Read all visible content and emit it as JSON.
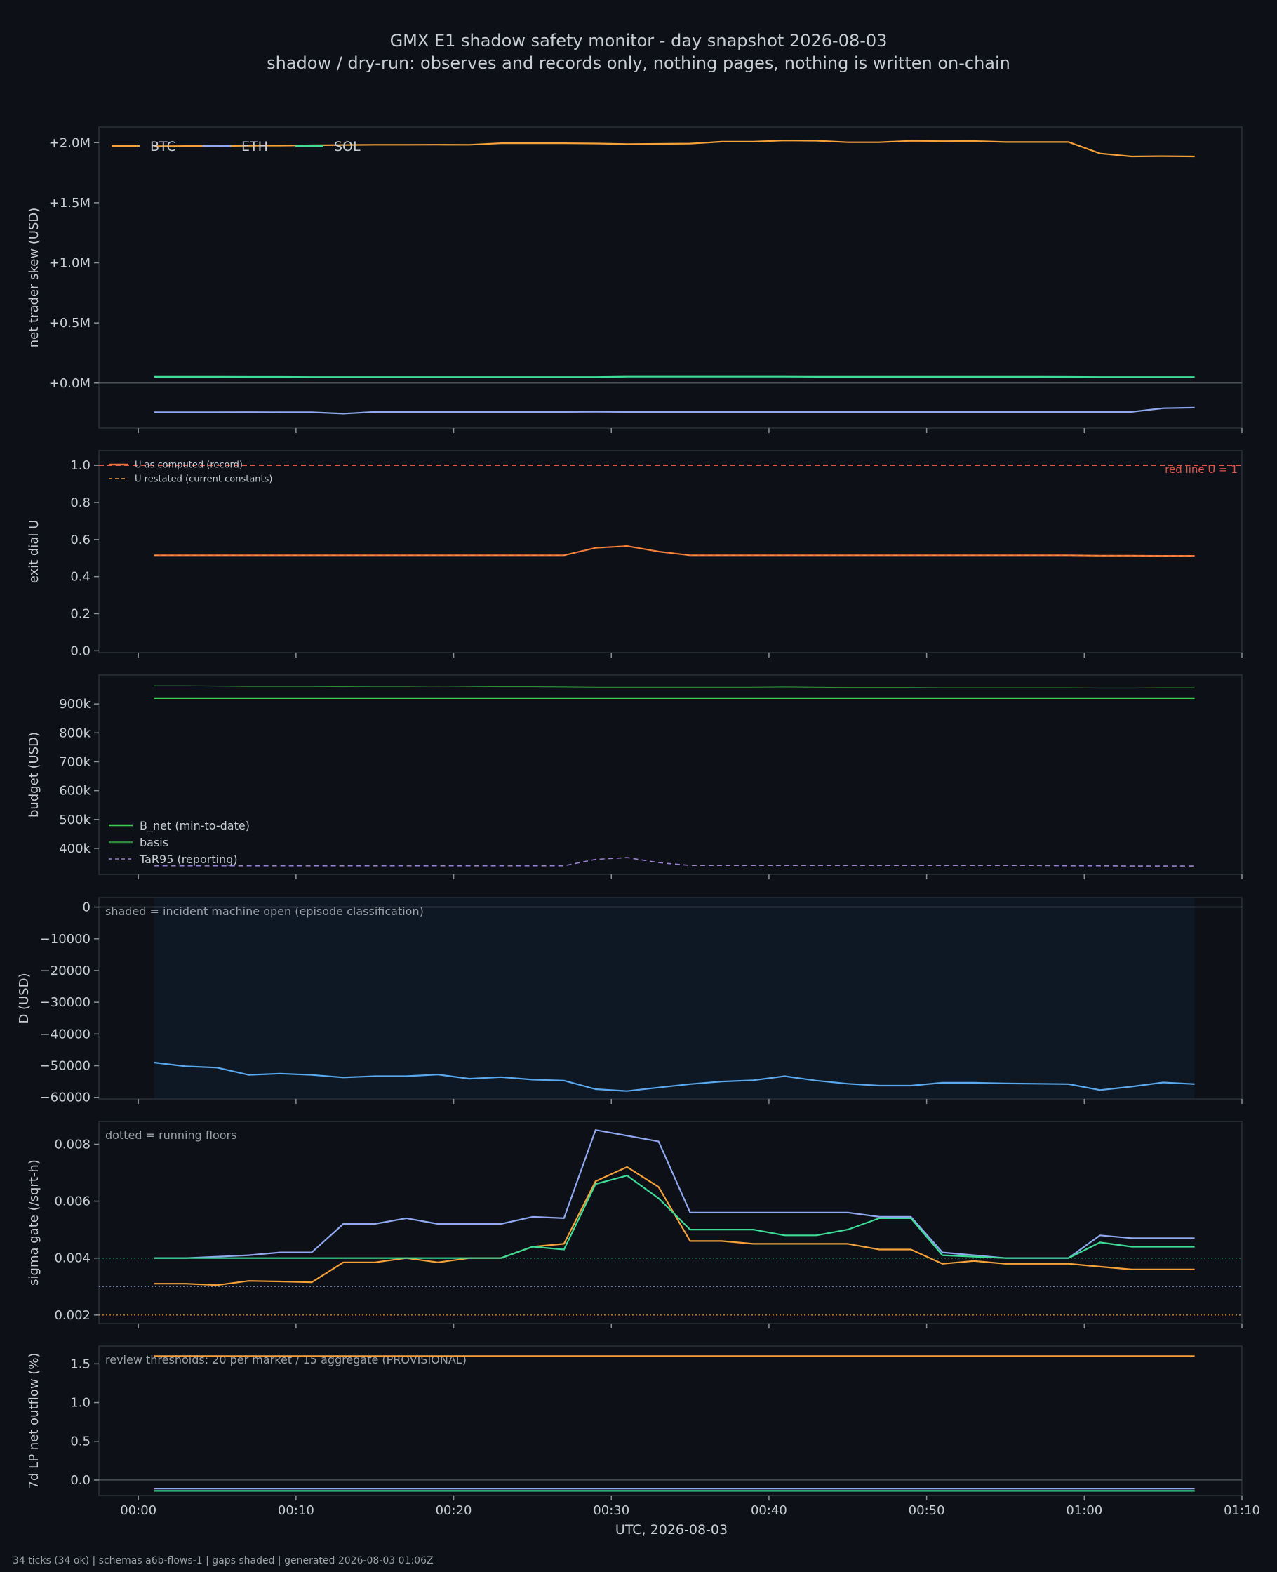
{
  "figure": {
    "title": "GMX E1 shadow safety monitor - day snapshot 2026-08-03",
    "subtitle": "shadow / dry-run: observes and records only, nothing pages, nothing is written on-chain",
    "x_label": "UTC, 2026-08-03",
    "x_ticks": [
      "00:00",
      "00:10",
      "00:20",
      "00:30",
      "00:40",
      "00:50",
      "01:00",
      "01:10"
    ],
    "footer": "34 ticks (34 ok) | schemas a6b-flows-1 | gaps shaded | generated 2026-08-03 01:06Z",
    "colors": {
      "background": "#0d1017",
      "btc": "#f5a13a",
      "eth": "#8fa8f0",
      "sol": "#3ddc97",
      "u_record": "#f0703a",
      "red_line": "#e0554a",
      "b_net": "#3fcc55",
      "basis": "#2e8a3a",
      "tar95": "#9b7fd0",
      "d_line": "#5aa8ee",
      "shade": "#0e1824"
    }
  },
  "chart_data": [
    {
      "type": "line",
      "ylabel": "net trader skew (USD)",
      "y_ticks": [
        "+2.0M",
        "+1.5M",
        "+1.0M",
        "+0.5M",
        "+0.0M"
      ],
      "y_tick_values": [
        2000000,
        1500000,
        1000000,
        500000,
        0
      ],
      "ylim": [
        -375000,
        2130000
      ],
      "zero_line": 0,
      "legend": "top-left",
      "x": [
        1,
        3,
        5,
        7,
        9,
        11,
        13,
        15,
        17,
        19,
        21,
        23,
        25,
        27,
        29,
        31,
        33,
        35,
        37,
        39,
        41,
        43,
        45,
        47,
        49,
        51,
        53,
        55,
        57,
        59,
        61,
        63,
        65,
        67
      ],
      "series": [
        {
          "name": "BTC",
          "values": [
            1970000,
            1972000,
            1972000,
            1974000,
            1975000,
            1978000,
            1980000,
            1982000,
            1982000,
            1983000,
            1982000,
            1995000,
            1995000,
            1995000,
            1993000,
            1988000,
            1990000,
            1992000,
            2008000,
            2008000,
            2018000,
            2016000,
            2003000,
            2003000,
            2015000,
            2012000,
            2013000,
            2005000,
            2005000,
            2005000,
            1910000,
            1885000,
            1887000,
            1885000
          ]
        },
        {
          "name": "ETH",
          "values": [
            -243000,
            -243000,
            -243000,
            -242000,
            -243000,
            -243000,
            -255000,
            -240000,
            -240000,
            -240000,
            -240000,
            -240000,
            -240000,
            -240000,
            -239000,
            -240000,
            -240000,
            -240000,
            -240000,
            -240000,
            -240000,
            -240000,
            -240000,
            -240000,
            -240000,
            -240000,
            -240000,
            -240000,
            -240000,
            -240000,
            -240000,
            -240000,
            -210000,
            -205000
          ]
        },
        {
          "name": "SOL",
          "values": [
            52000,
            52000,
            52000,
            51000,
            51000,
            50000,
            50000,
            50000,
            50000,
            50000,
            50000,
            50000,
            50000,
            50000,
            50000,
            53000,
            53000,
            53000,
            53000,
            53000,
            53000,
            52000,
            52000,
            52000,
            52000,
            52000,
            52000,
            52000,
            52000,
            51000,
            50000,
            50000,
            50000,
            50000
          ]
        }
      ]
    },
    {
      "type": "line",
      "ylabel": "exit dial U",
      "y_ticks": [
        "1.0",
        "0.8",
        "0.6",
        "0.4",
        "0.2",
        "0.0"
      ],
      "y_tick_values": [
        1.0,
        0.8,
        0.6,
        0.4,
        0.2,
        0.0
      ],
      "ylim": [
        -0.01,
        1.08
      ],
      "legend": "top-left",
      "annotation": "red line U = 1",
      "reference_value": 1.0,
      "x": [
        1,
        3,
        5,
        7,
        9,
        11,
        13,
        15,
        17,
        19,
        21,
        23,
        25,
        27,
        29,
        31,
        33,
        35,
        37,
        39,
        41,
        43,
        45,
        47,
        49,
        51,
        53,
        55,
        57,
        59,
        61,
        63,
        65,
        67
      ],
      "series": [
        {
          "name": "U as computed (record)",
          "values": [
            0.515,
            0.515,
            0.515,
            0.515,
            0.515,
            0.515,
            0.515,
            0.515,
            0.515,
            0.515,
            0.515,
            0.515,
            0.515,
            0.515,
            0.555,
            0.565,
            0.535,
            0.515,
            0.515,
            0.515,
            0.515,
            0.515,
            0.515,
            0.515,
            0.515,
            0.515,
            0.515,
            0.515,
            0.515,
            0.515,
            0.513,
            0.513,
            0.512,
            0.512
          ]
        },
        {
          "name": "U restated (current constants)",
          "values": [
            0.515,
            0.515,
            0.515,
            0.515,
            0.515,
            0.515,
            0.515,
            0.515,
            0.515,
            0.515,
            0.515,
            0.515,
            0.515,
            0.515,
            0.555,
            0.565,
            0.535,
            0.515,
            0.515,
            0.515,
            0.515,
            0.515,
            0.515,
            0.515,
            0.515,
            0.515,
            0.515,
            0.515,
            0.515,
            0.515,
            0.513,
            0.513,
            0.512,
            0.512
          ]
        }
      ]
    },
    {
      "type": "line",
      "ylabel": "budget (USD)",
      "y_ticks": [
        "900k",
        "800k",
        "700k",
        "600k",
        "500k",
        "400k"
      ],
      "y_tick_values": [
        900000,
        800000,
        700000,
        600000,
        500000,
        400000
      ],
      "ylim": [
        310000,
        1000000
      ],
      "legend": "bottom-left",
      "x": [
        1,
        3,
        5,
        7,
        9,
        11,
        13,
        15,
        17,
        19,
        21,
        23,
        25,
        27,
        29,
        31,
        33,
        35,
        37,
        39,
        41,
        43,
        45,
        47,
        49,
        51,
        53,
        55,
        57,
        59,
        61,
        63,
        65,
        67
      ],
      "series": [
        {
          "name": "B_net (min-to-date)",
          "values": [
            920000,
            920000,
            920000,
            920000,
            920000,
            920000,
            920000,
            920000,
            920000,
            920000,
            920000,
            920000,
            920000,
            920000,
            920000,
            920000,
            920000,
            920000,
            920000,
            920000,
            920000,
            920000,
            920000,
            920000,
            920000,
            920000,
            920000,
            920000,
            920000,
            920000,
            920000,
            920000,
            920000,
            920000
          ]
        },
        {
          "name": "basis",
          "values": [
            963000,
            963000,
            962000,
            961000,
            961000,
            961000,
            960000,
            961000,
            961000,
            962000,
            961000,
            960000,
            960000,
            959000,
            958000,
            958000,
            958000,
            958000,
            958000,
            958000,
            959000,
            958000,
            957000,
            957000,
            957000,
            956000,
            956000,
            956000,
            956000,
            956000,
            955000,
            955000,
            956000,
            956000
          ]
        },
        {
          "name": "TaR95 (reporting)",
          "values": [
            340000,
            340000,
            340000,
            340000,
            340000,
            340000,
            340000,
            340000,
            340000,
            340000,
            340000,
            340000,
            340000,
            340000,
            362000,
            368000,
            351000,
            341000,
            341000,
            341000,
            341000,
            341000,
            341000,
            341000,
            341000,
            341000,
            341000,
            341000,
            341000,
            340000,
            340000,
            339000,
            339000,
            339000
          ]
        }
      ]
    },
    {
      "type": "line",
      "ylabel": "D (USD)",
      "y_ticks": [
        "0",
        "−10000",
        "−20000",
        "−30000",
        "−40000",
        "−50000",
        "−60000"
      ],
      "y_tick_values": [
        0,
        -10000,
        -20000,
        -30000,
        -40000,
        -50000,
        -60000
      ],
      "ylim": [
        -60500,
        3000
      ],
      "zero_line": 0,
      "note": "shaded = incident machine open (episode classification)",
      "shaded_x_range": [
        1,
        67
      ],
      "x": [
        1,
        3,
        5,
        7,
        9,
        11,
        13,
        15,
        17,
        19,
        21,
        23,
        25,
        27,
        29,
        31,
        33,
        35,
        37,
        39,
        41,
        43,
        45,
        47,
        49,
        51,
        53,
        55,
        57,
        59,
        61,
        63,
        65,
        67
      ],
      "series": [
        {
          "name": "D",
          "values": [
            -49000,
            -50200,
            -50600,
            -52900,
            -52500,
            -52900,
            -53700,
            -53300,
            -53300,
            -52800,
            -54100,
            -53600,
            -54400,
            -54700,
            -57400,
            -58000,
            -56900,
            -55800,
            -55000,
            -54600,
            -53300,
            -54700,
            -55700,
            -56300,
            -56300,
            -55400,
            -55400,
            -55600,
            -55700,
            -55800,
            -57700,
            -56600,
            -55300,
            -55800
          ]
        }
      ]
    },
    {
      "type": "line",
      "ylabel": "sigma gate (/sqrt-h)",
      "y_ticks": [
        "0.008",
        "0.006",
        "0.004",
        "0.002"
      ],
      "y_tick_values": [
        0.008,
        0.006,
        0.004,
        0.002
      ],
      "ylim": [
        0.0017,
        0.0088
      ],
      "note": "dotted = running floors",
      "floors": [
        {
          "series": "SOL",
          "value": 0.004
        },
        {
          "series": "ETH",
          "value": 0.003
        },
        {
          "series": "BTC",
          "value": 0.002
        }
      ],
      "x": [
        1,
        3,
        5,
        7,
        9,
        11,
        13,
        15,
        17,
        19,
        21,
        23,
        25,
        27,
        29,
        31,
        33,
        35,
        37,
        39,
        41,
        43,
        45,
        47,
        49,
        51,
        53,
        55,
        57,
        59,
        61,
        63,
        65,
        67
      ],
      "series": [
        {
          "name": "BTC",
          "values": [
            0.0031,
            0.0031,
            0.00305,
            0.0032,
            0.00318,
            0.00315,
            0.00385,
            0.00385,
            0.004,
            0.00385,
            0.004,
            0.004,
            0.0044,
            0.0045,
            0.0067,
            0.0072,
            0.0065,
            0.0046,
            0.0046,
            0.0045,
            0.0045,
            0.0045,
            0.0045,
            0.0043,
            0.0043,
            0.0038,
            0.0039,
            0.0038,
            0.0038,
            0.0038,
            0.0037,
            0.0036,
            0.0036,
            0.0036
          ]
        },
        {
          "name": "ETH",
          "values": [
            0.004,
            0.004,
            0.00405,
            0.0041,
            0.0042,
            0.0042,
            0.0052,
            0.0052,
            0.0054,
            0.0052,
            0.0052,
            0.0052,
            0.00545,
            0.0054,
            0.0085,
            0.0083,
            0.0081,
            0.0056,
            0.0056,
            0.0056,
            0.0056,
            0.0056,
            0.0056,
            0.00545,
            0.00545,
            0.0042,
            0.0041,
            0.004,
            0.004,
            0.004,
            0.0048,
            0.0047,
            0.0047,
            0.0047
          ]
        },
        {
          "name": "SOL",
          "values": [
            0.004,
            0.004,
            0.004,
            0.004,
            0.004,
            0.004,
            0.004,
            0.004,
            0.004,
            0.004,
            0.004,
            0.004,
            0.0044,
            0.0043,
            0.0066,
            0.0069,
            0.0061,
            0.005,
            0.005,
            0.005,
            0.0048,
            0.0048,
            0.005,
            0.0054,
            0.0054,
            0.0041,
            0.00405,
            0.004,
            0.004,
            0.004,
            0.00455,
            0.0044,
            0.0044,
            0.0044
          ]
        }
      ]
    },
    {
      "type": "line",
      "ylabel": "7d LP net outflow (%)",
      "y_ticks": [
        "1.5",
        "1.0",
        "0.5",
        "0.0"
      ],
      "y_tick_values": [
        1.5,
        1.0,
        0.5,
        0.0
      ],
      "ylim": [
        -0.2,
        1.73
      ],
      "zero_line": 0,
      "note": "review thresholds: 20 per market / 15 aggregate (PROVISIONAL)",
      "x": [
        1,
        67
      ],
      "series": [
        {
          "name": "BTC",
          "values": [
            1.6,
            1.6
          ]
        },
        {
          "name": "ETH",
          "values": [
            -0.11,
            -0.11
          ]
        },
        {
          "name": "SOL",
          "values": [
            -0.14,
            -0.14
          ]
        }
      ]
    }
  ]
}
